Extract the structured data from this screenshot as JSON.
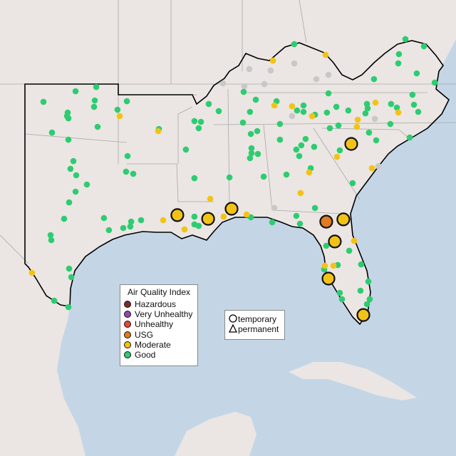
{
  "legend": {
    "title": "Air Quality Index",
    "categories": [
      {
        "label": "Hazardous",
        "color": "#7e2b2b"
      },
      {
        "label": "Very Unhealthy",
        "color": "#8e4aa8"
      },
      {
        "label": "Unhealthy",
        "color": "#e8453c"
      },
      {
        "label": "USG",
        "color": "#e07b22"
      },
      {
        "label": "Moderate",
        "color": "#f2c316"
      },
      {
        "label": "Good",
        "color": "#2ecc71"
      }
    ],
    "monitor_types": [
      {
        "label": "temporary",
        "shape": "circle-outline"
      },
      {
        "label": "permanent",
        "shape": "triangle-outline"
      }
    ]
  },
  "colors": {
    "ocean": "#c4d6e6",
    "land": "#ebe6e3",
    "no_data": "#c8c8c8",
    "region_outline": "#000000"
  },
  "monitors": {
    "moderate_temporary": [
      [
        -91.13,
        30.68
      ],
      [
        -89.33,
        30.49
      ],
      [
        -87.96,
        31.01
      ],
      [
        -80.96,
        34.38
      ],
      [
        -81.42,
        30.46
      ],
      [
        -81.92,
        29.31
      ],
      [
        -82.29,
        27.38
      ],
      [
        -80.25,
        25.49
      ]
    ],
    "usg_temporary": [
      [
        -82.42,
        30.34
      ]
    ],
    "moderate": [
      [
        -94.5,
        35.83
      ],
      [
        -92.25,
        35.05
      ],
      [
        -89.21,
        31.53
      ],
      [
        -91.96,
        30.42
      ],
      [
        -90.71,
        29.94
      ],
      [
        -88.42,
        30.6
      ],
      [
        -87.08,
        30.71
      ],
      [
        -99.63,
        27.68
      ],
      [
        -82.46,
        39.01
      ],
      [
        -85.46,
        36.38
      ],
      [
        -84.42,
        36.34
      ],
      [
        -83.25,
        35.83
      ],
      [
        -80.58,
        35.64
      ],
      [
        -79.54,
        36.53
      ],
      [
        -78.21,
        36.01
      ],
      [
        -81.79,
        33.71
      ],
      [
        -83.42,
        32.9
      ],
      [
        -83.92,
        31.83
      ],
      [
        -79.75,
        33.12
      ],
      [
        -85.54,
        38.71
      ],
      [
        -80.63,
        35.27
      ],
      [
        -80.79,
        29.34
      ],
      [
        -82.5,
        28.05
      ],
      [
        -82.0,
        28.05
      ]
    ],
    "no_data": [
      [
        -86.92,
        38.27
      ],
      [
        -85.67,
        38.2
      ],
      [
        -84.29,
        38.57
      ],
      [
        -86.04,
        37.49
      ],
      [
        -83.0,
        37.75
      ],
      [
        -82.29,
        37.97
      ],
      [
        -87.21,
        37.38
      ],
      [
        -84.42,
        35.83
      ],
      [
        -79.58,
        35.68
      ],
      [
        -79.38,
        33.23
      ],
      [
        -85.46,
        31.05
      ],
      [
        -88.46,
        37.53
      ]
    ],
    "good": [
      [
        -97.08,
        37.12
      ],
      [
        -95.87,
        37.34
      ],
      [
        -98.96,
        36.57
      ],
      [
        -95.96,
        36.64
      ],
      [
        -96.0,
        36.31
      ],
      [
        -97.54,
        36.01
      ],
      [
        -97.58,
        35.83
      ],
      [
        -97.5,
        35.71
      ],
      [
        -94.08,
        36.6
      ],
      [
        -94.63,
        36.16
      ],
      [
        -95.79,
        35.27
      ],
      [
        -98.46,
        34.97
      ],
      [
        -97.5,
        34.6
      ],
      [
        -92.21,
        35.16
      ],
      [
        -89.29,
        36.46
      ],
      [
        -88.71,
        36.09
      ],
      [
        -90.13,
        35.57
      ],
      [
        -89.75,
        35.53
      ],
      [
        -89.88,
        35.2
      ],
      [
        -90.63,
        34.09
      ],
      [
        -94.04,
        33.75
      ],
      [
        -97.21,
        33.49
      ],
      [
        -97.38,
        33.09
      ],
      [
        -97.04,
        32.75
      ],
      [
        -94.13,
        32.94
      ],
      [
        -93.71,
        32.83
      ],
      [
        -90.13,
        32.6
      ],
      [
        -96.42,
        32.27
      ],
      [
        -97.08,
        31.9
      ],
      [
        -97.46,
        31.34
      ],
      [
        -97.75,
        30.49
      ],
      [
        -95.42,
        30.53
      ],
      [
        -93.25,
        30.42
      ],
      [
        -93.83,
        30.34
      ],
      [
        -93.88,
        30.09
      ],
      [
        -94.29,
        30.01
      ],
      [
        -95.13,
        29.9
      ],
      [
        -90.13,
        30.6
      ],
      [
        -90.13,
        30.2
      ],
      [
        -89.88,
        30.12
      ],
      [
        -98.54,
        29.64
      ],
      [
        -98.5,
        29.38
      ],
      [
        -97.46,
        27.9
      ],
      [
        -97.33,
        27.46
      ],
      [
        -98.33,
        26.23
      ],
      [
        -97.5,
        25.9
      ],
      [
        -84.29,
        39.57
      ],
      [
        -77.79,
        39.83
      ],
      [
        -76.71,
        39.46
      ],
      [
        -78.17,
        39.05
      ],
      [
        -78.21,
        38.57
      ],
      [
        -77.13,
        38.05
      ],
      [
        -76.08,
        37.57
      ],
      [
        -79.63,
        37.75
      ],
      [
        -87.25,
        37.09
      ],
      [
        -86.54,
        36.68
      ],
      [
        -85.33,
        36.6
      ],
      [
        -86.88,
        36.05
      ],
      [
        -84.13,
        36.12
      ],
      [
        -83.75,
        36.38
      ],
      [
        -83.75,
        36.05
      ],
      [
        -83.08,
        35.9
      ],
      [
        -82.29,
        37.01
      ],
      [
        -81.83,
        36.31
      ],
      [
        -81.13,
        36.12
      ],
      [
        -82.38,
        36.01
      ],
      [
        -80.04,
        36.46
      ],
      [
        -80.0,
        36.23
      ],
      [
        -80.13,
        35.97
      ],
      [
        -78.63,
        36.46
      ],
      [
        -78.29,
        36.27
      ],
      [
        -77.38,
        36.94
      ],
      [
        -77.29,
        36.42
      ],
      [
        -77.04,
        36.05
      ],
      [
        -78.67,
        35.42
      ],
      [
        -79.92,
        34.97
      ],
      [
        -79.5,
        34.57
      ],
      [
        -77.54,
        34.71
      ],
      [
        -87.29,
        35.49
      ],
      [
        -85.13,
        35.42
      ],
      [
        -82.21,
        35.2
      ],
      [
        -81.71,
        35.34
      ],
      [
        -86.83,
        34.9
      ],
      [
        -86.46,
        35.05
      ],
      [
        -85.13,
        34.6
      ],
      [
        -83.63,
        34.64
      ],
      [
        -83.88,
        34.31
      ],
      [
        -83.13,
        34.23
      ],
      [
        -81.63,
        34.05
      ],
      [
        -84.17,
        34.09
      ],
      [
        -84.0,
        33.75
      ],
      [
        -86.79,
        34.16
      ],
      [
        -86.79,
        33.9
      ],
      [
        -86.42,
        33.86
      ],
      [
        -86.88,
        33.64
      ],
      [
        -83.33,
        33.12
      ],
      [
        -84.75,
        32.79
      ],
      [
        -86.08,
        32.68
      ],
      [
        -80.88,
        32.34
      ],
      [
        -83.08,
        31.05
      ],
      [
        -84.17,
        30.64
      ],
      [
        -83.96,
        30.23
      ],
      [
        -85.58,
        30.31
      ],
      [
        -86.83,
        30.57
      ],
      [
        -82.42,
        29.09
      ],
      [
        -81.08,
        28.83
      ],
      [
        -80.38,
        28.12
      ],
      [
        -81.75,
        28.09
      ],
      [
        -82.54,
        27.86
      ],
      [
        -79.96,
        27.23
      ],
      [
        -80.42,
        26.75
      ],
      [
        -81.63,
        26.64
      ],
      [
        -81.5,
        26.31
      ],
      [
        -79.88,
        26.31
      ],
      [
        -80.04,
        26.05
      ],
      [
        -88.08,
        32.64
      ]
    ]
  }
}
